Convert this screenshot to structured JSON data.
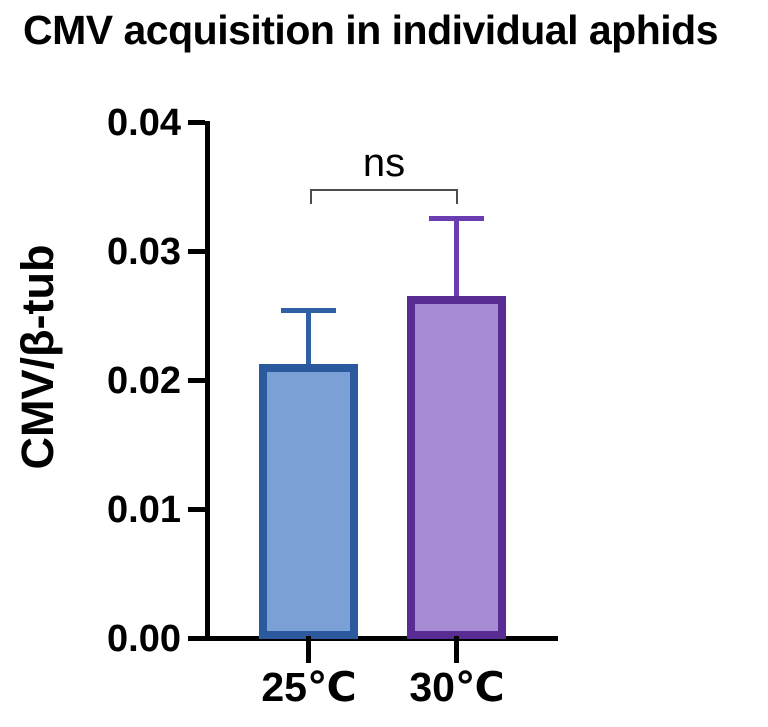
{
  "chart_data": {
    "type": "bar",
    "title": "CMV acquisition in individual aphids",
    "ylabel": "CMV/β-tub",
    "xlabel": "",
    "categories": [
      "25℃",
      "30℃"
    ],
    "values": [
      0.0213,
      0.0266
    ],
    "errors_sd": [
      0.004,
      0.0058
    ],
    "error_direction": "upper-only",
    "ylim": [
      0.0,
      0.04
    ],
    "ytick_labels": [
      "0.00",
      "0.01",
      "0.02",
      "0.03",
      "0.04"
    ],
    "ytick_values": [
      0,
      0.01,
      0.02,
      0.03,
      0.04
    ],
    "grid": false,
    "legend": "none",
    "annotation": {
      "label": "ns",
      "between": [
        "25℃",
        "30℃"
      ]
    },
    "series_colors": [
      {
        "fill": "#7ba0d5",
        "border": "#2a5a9d",
        "error": "#2e61a4"
      },
      {
        "fill": "#a68bd3",
        "border": "#582c93",
        "error": "#6a3eb0"
      }
    ],
    "axis_color": "#000000",
    "bracket_color": "#4d4d4d",
    "background": "#ffffff"
  }
}
